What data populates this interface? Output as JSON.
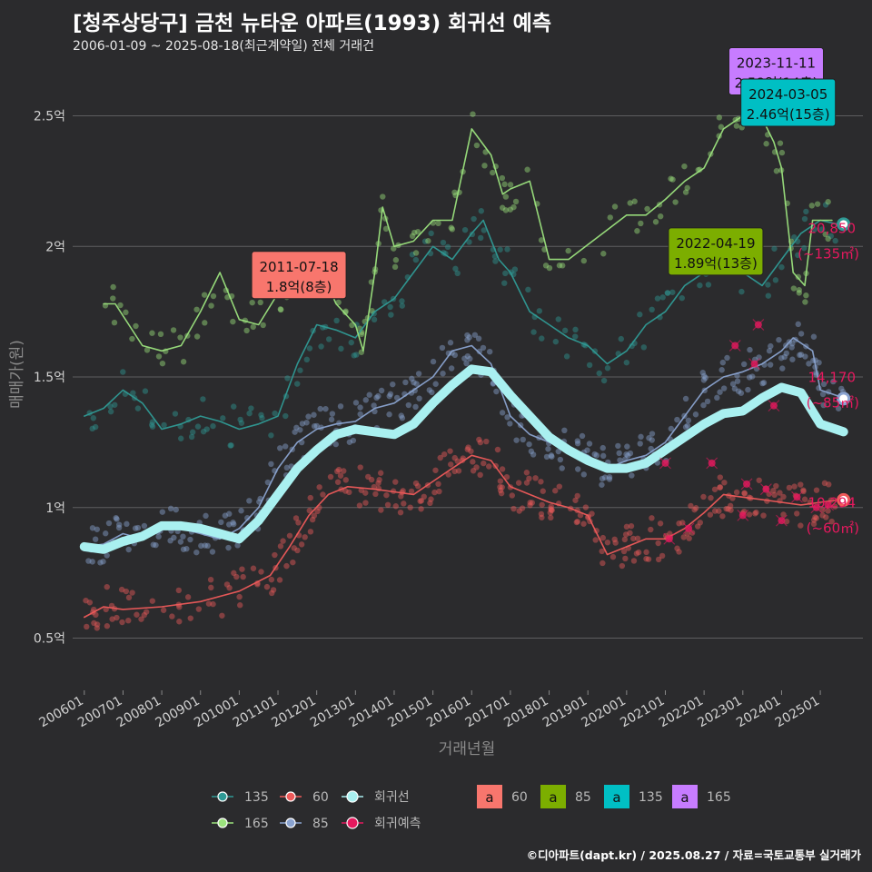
{
  "header": {
    "title": "[청주상당구] 금천 뉴타운 아파트(1993) 회귀선 예측",
    "subtitle": "2006-01-09 ~ 2025-08-18(최근계약일) 전체 거래건"
  },
  "credit": "©디아파트(dapt.kr) / 2025.08.27 / 자료=국토교통부 실거래가",
  "colors": {
    "s135": "#2f9a95",
    "s165": "#9be27d",
    "s60": "#ee5a5a",
    "s85": "#8aa3d0",
    "trend": "#a9f0f0",
    "pred": "#e5195e",
    "box60": "#f8766d",
    "box85": "#7cae00",
    "box135": "#00bfc4",
    "box165": "#c77cff"
  },
  "chart_data": {
    "type": "scatter",
    "xlabel": "거래년월",
    "ylabel": "매매가(원)",
    "ylim": [
      0.3,
      2.7
    ],
    "xlim": [
      2005.7,
      2026.1
    ],
    "yticks": [
      {
        "v": 0.5,
        "label": "0.5억"
      },
      {
        "v": 1.0,
        "label": "1억"
      },
      {
        "v": 1.5,
        "label": "1.5억"
      },
      {
        "v": 2.0,
        "label": "2억"
      },
      {
        "v": 2.5,
        "label": "2.5억"
      }
    ],
    "xticks": [
      {
        "v": 2006,
        "label": "200601"
      },
      {
        "v": 2007,
        "label": "200701"
      },
      {
        "v": 2008,
        "label": "200801"
      },
      {
        "v": 2009,
        "label": "200901"
      },
      {
        "v": 2010,
        "label": "201001"
      },
      {
        "v": 2011,
        "label": "201101"
      },
      {
        "v": 2012,
        "label": "201201"
      },
      {
        "v": 2013,
        "label": "201301"
      },
      {
        "v": 2014,
        "label": "201401"
      },
      {
        "v": 2015,
        "label": "201501"
      },
      {
        "v": 2016,
        "label": "201601"
      },
      {
        "v": 2017,
        "label": "201701"
      },
      {
        "v": 2018,
        "label": "201801"
      },
      {
        "v": 2019,
        "label": "201901"
      },
      {
        "v": 2020,
        "label": "202001"
      },
      {
        "v": 2021,
        "label": "202101"
      },
      {
        "v": 2022,
        "label": "202201"
      },
      {
        "v": 2023,
        "label": "202301"
      },
      {
        "v": 2024,
        "label": "202401"
      },
      {
        "v": 2025,
        "label": "202501"
      }
    ],
    "series": [
      {
        "name": "60",
        "key": "s60",
        "values": [
          [
            2006,
            0.58
          ],
          [
            2006.5,
            0.62
          ],
          [
            2007,
            0.61
          ],
          [
            2008,
            0.62
          ],
          [
            2009,
            0.64
          ],
          [
            2010,
            0.68
          ],
          [
            2010.8,
            0.74
          ],
          [
            2011.3,
            0.85
          ],
          [
            2011.8,
            0.97
          ],
          [
            2012.3,
            1.05
          ],
          [
            2012.8,
            1.08
          ],
          [
            2013.5,
            1.07
          ],
          [
            2014,
            1.06
          ],
          [
            2014.5,
            1.05
          ],
          [
            2015,
            1.1
          ],
          [
            2015.5,
            1.15
          ],
          [
            2016,
            1.2
          ],
          [
            2016.5,
            1.18
          ],
          [
            2017,
            1.08
          ],
          [
            2017.5,
            1.05
          ],
          [
            2018,
            1.02
          ],
          [
            2018.5,
            1.0
          ],
          [
            2019,
            0.97
          ],
          [
            2019.5,
            0.82
          ],
          [
            2020,
            0.85
          ],
          [
            2020.5,
            0.88
          ],
          [
            2021,
            0.88
          ],
          [
            2021.5,
            0.92
          ],
          [
            2022,
            0.98
          ],
          [
            2022.5,
            1.05
          ],
          [
            2023,
            1.04
          ],
          [
            2023.5,
            1.03
          ],
          [
            2024,
            1.02
          ],
          [
            2024.5,
            1.01
          ],
          [
            2025,
            1.02
          ],
          [
            2025.5,
            1.03
          ]
        ]
      },
      {
        "name": "85",
        "key": "s85",
        "values": [
          [
            2006,
            0.85
          ],
          [
            2006.5,
            0.86
          ],
          [
            2007,
            0.9
          ],
          [
            2007.5,
            0.88
          ],
          [
            2008,
            0.93
          ],
          [
            2008.5,
            0.92
          ],
          [
            2009,
            0.9
          ],
          [
            2009.5,
            0.88
          ],
          [
            2010,
            0.92
          ],
          [
            2010.5,
            1.0
          ],
          [
            2011,
            1.15
          ],
          [
            2011.5,
            1.25
          ],
          [
            2012,
            1.3
          ],
          [
            2012.5,
            1.32
          ],
          [
            2013,
            1.33
          ],
          [
            2013.5,
            1.38
          ],
          [
            2014,
            1.4
          ],
          [
            2014.5,
            1.45
          ],
          [
            2015,
            1.5
          ],
          [
            2015.5,
            1.6
          ],
          [
            2016,
            1.62
          ],
          [
            2016.5,
            1.55
          ],
          [
            2017,
            1.35
          ],
          [
            2017.5,
            1.28
          ],
          [
            2018,
            1.25
          ],
          [
            2018.5,
            1.22
          ],
          [
            2019,
            1.2
          ],
          [
            2019.5,
            1.15
          ],
          [
            2020,
            1.18
          ],
          [
            2020.5,
            1.2
          ],
          [
            2021,
            1.25
          ],
          [
            2021.5,
            1.35
          ],
          [
            2022,
            1.45
          ],
          [
            2022.5,
            1.5
          ],
          [
            2023,
            1.52
          ],
          [
            2023.5,
            1.55
          ],
          [
            2024,
            1.6
          ],
          [
            2024.3,
            1.65
          ],
          [
            2024.8,
            1.6
          ],
          [
            2025,
            1.45
          ],
          [
            2025.6,
            1.42
          ]
        ]
      },
      {
        "name": "135",
        "key": "s135",
        "values": [
          [
            2006,
            1.35
          ],
          [
            2006.5,
            1.38
          ],
          [
            2007,
            1.45
          ],
          [
            2007.5,
            1.4
          ],
          [
            2008,
            1.3
          ],
          [
            2008.5,
            1.32
          ],
          [
            2009,
            1.35
          ],
          [
            2009.5,
            1.33
          ],
          [
            2010,
            1.3
          ],
          [
            2010.5,
            1.32
          ],
          [
            2011,
            1.35
          ],
          [
            2011.5,
            1.55
          ],
          [
            2012,
            1.7
          ],
          [
            2012.5,
            1.68
          ],
          [
            2013,
            1.65
          ],
          [
            2013.5,
            1.75
          ],
          [
            2014,
            1.8
          ],
          [
            2014.5,
            1.9
          ],
          [
            2015,
            2.0
          ],
          [
            2015.5,
            1.95
          ],
          [
            2016,
            2.05
          ],
          [
            2016.3,
            2.1
          ],
          [
            2016.7,
            1.95
          ],
          [
            2017,
            1.9
          ],
          [
            2017.5,
            1.75
          ],
          [
            2018,
            1.7
          ],
          [
            2018.5,
            1.65
          ],
          [
            2019,
            1.62
          ],
          [
            2019.5,
            1.55
          ],
          [
            2020,
            1.6
          ],
          [
            2020.5,
            1.7
          ],
          [
            2021,
            1.75
          ],
          [
            2021.5,
            1.85
          ],
          [
            2022,
            1.9
          ],
          [
            2022.5,
            2.0
          ],
          [
            2023,
            1.9
          ],
          [
            2023.5,
            1.85
          ],
          [
            2024,
            1.95
          ],
          [
            2024.5,
            2.05
          ],
          [
            2025,
            2.1
          ],
          [
            2025.6,
            2.08
          ]
        ]
      },
      {
        "name": "165",
        "key": "s165",
        "values": [
          [
            2006.5,
            1.78
          ],
          [
            2006.8,
            1.78
          ],
          [
            2007.5,
            1.62
          ],
          [
            2008,
            1.6
          ],
          [
            2008.5,
            1.62
          ],
          [
            2009,
            1.75
          ],
          [
            2009.5,
            1.9
          ],
          [
            2010,
            1.72
          ],
          [
            2010.5,
            1.7
          ],
          [
            2011,
            1.82
          ],
          [
            2011.5,
            1.9
          ],
          [
            2012,
            1.95
          ],
          [
            2012.5,
            1.78
          ],
          [
            2013,
            1.7
          ],
          [
            2013.2,
            1.6
          ],
          [
            2013.5,
            1.9
          ],
          [
            2013.7,
            2.15
          ],
          [
            2014,
            2.0
          ],
          [
            2014.5,
            2.02
          ],
          [
            2015,
            2.1
          ],
          [
            2015.5,
            2.1
          ],
          [
            2016,
            2.45
          ],
          [
            2016.5,
            2.35
          ],
          [
            2016.8,
            2.2
          ],
          [
            2017,
            2.22
          ],
          [
            2017.5,
            2.25
          ],
          [
            2018,
            1.95
          ],
          [
            2018.5,
            1.95
          ],
          [
            2020,
            2.12
          ],
          [
            2020.5,
            2.12
          ],
          [
            2021,
            2.18
          ],
          [
            2021.5,
            2.25
          ],
          [
            2022,
            2.3
          ],
          [
            2022.5,
            2.45
          ],
          [
            2023,
            2.5
          ],
          [
            2023.3,
            2.55
          ],
          [
            2023.8,
            2.4
          ],
          [
            2024,
            2.3
          ],
          [
            2024.3,
            1.9
          ],
          [
            2024.6,
            1.85
          ],
          [
            2024.8,
            2.1
          ],
          [
            2025.3,
            2.1
          ]
        ]
      },
      {
        "name": "회귀선",
        "key": "trend",
        "values": [
          [
            2006,
            0.85
          ],
          [
            2006.5,
            0.84
          ],
          [
            2007,
            0.87
          ],
          [
            2007.5,
            0.89
          ],
          [
            2008,
            0.93
          ],
          [
            2008.5,
            0.93
          ],
          [
            2009,
            0.92
          ],
          [
            2009.5,
            0.9
          ],
          [
            2010,
            0.88
          ],
          [
            2010.5,
            0.95
          ],
          [
            2011,
            1.05
          ],
          [
            2011.5,
            1.15
          ],
          [
            2012,
            1.22
          ],
          [
            2012.5,
            1.28
          ],
          [
            2013,
            1.3
          ],
          [
            2013.5,
            1.29
          ],
          [
            2014,
            1.28
          ],
          [
            2014.5,
            1.32
          ],
          [
            2015,
            1.4
          ],
          [
            2015.5,
            1.47
          ],
          [
            2016,
            1.53
          ],
          [
            2016.5,
            1.52
          ],
          [
            2017,
            1.43
          ],
          [
            2017.5,
            1.35
          ],
          [
            2018,
            1.27
          ],
          [
            2018.5,
            1.22
          ],
          [
            2019,
            1.18
          ],
          [
            2019.5,
            1.15
          ],
          [
            2020,
            1.15
          ],
          [
            2020.5,
            1.17
          ],
          [
            2021,
            1.22
          ],
          [
            2021.5,
            1.27
          ],
          [
            2022,
            1.32
          ],
          [
            2022.5,
            1.36
          ],
          [
            2023,
            1.37
          ],
          [
            2023.5,
            1.42
          ],
          [
            2024,
            1.46
          ],
          [
            2024.5,
            1.44
          ],
          [
            2025,
            1.32
          ],
          [
            2025.6,
            1.29
          ]
        ]
      }
    ],
    "predictions": [
      [
        2021,
        1.17
      ],
      [
        2021.1,
        0.88
      ],
      [
        2021.6,
        0.92
      ],
      [
        2021.9,
        2.0
      ],
      [
        2022.2,
        1.17
      ],
      [
        2022.8,
        1.62
      ],
      [
        2023,
        0.97
      ],
      [
        2023.1,
        1.09
      ],
      [
        2023.3,
        1.55
      ],
      [
        2023.4,
        1.7
      ],
      [
        2023.6,
        1.07
      ],
      [
        2023.8,
        1.39
      ],
      [
        2024,
        0.95
      ],
      [
        2024.4,
        1.04
      ],
      [
        2024.9,
        1.0
      ],
      [
        2025.2,
        1.01
      ]
    ],
    "end_labels": [
      {
        "x": 2025.6,
        "y": 2.085,
        "key": "s135",
        "value": "20,850",
        "area": "(~135㎡)",
        "ly": 2.03
      },
      {
        "x": 2025.6,
        "y": 1.417,
        "key": "s85",
        "value": "14,170",
        "area": "(~85㎡)",
        "ly": 1.46
      },
      {
        "x": 2025.6,
        "y": 1.029,
        "key": "s60",
        "value": "10,294",
        "area": "(~60㎡)",
        "ly": 0.98
      }
    ],
    "annotations": [
      {
        "date": "2011-07-18",
        "value": "1.8억(8층)",
        "key": "box60",
        "x": 2011.54,
        "y": 1.8
      },
      {
        "date": "2022-04-19",
        "value": "1.89억(13층)",
        "key": "box85",
        "x": 2022.3,
        "y": 1.89
      },
      {
        "date": "2023-11-11",
        "value": "2.58억(14층)",
        "key": "box165",
        "x": 2023.86,
        "y": 2.58
      },
      {
        "date": "2024-03-05",
        "value": "2.46억(15층)",
        "key": "box135",
        "x": 2024.17,
        "y": 2.46
      }
    ],
    "legend_lines": [
      {
        "label": "135",
        "key": "s135"
      },
      {
        "label": "60",
        "key": "s60"
      },
      {
        "label": "회귀선",
        "key": "trend"
      },
      {
        "label": "165",
        "key": "s165"
      },
      {
        "label": "85",
        "key": "s85"
      },
      {
        "label": "회귀예측",
        "key": "pred"
      }
    ],
    "legend_boxes": [
      {
        "glyph": "a",
        "label": "60",
        "key": "box60"
      },
      {
        "glyph": "a",
        "label": "85",
        "key": "box85"
      },
      {
        "glyph": "a",
        "label": "135",
        "key": "box135"
      },
      {
        "glyph": "a",
        "label": "165",
        "key": "box165"
      }
    ]
  }
}
